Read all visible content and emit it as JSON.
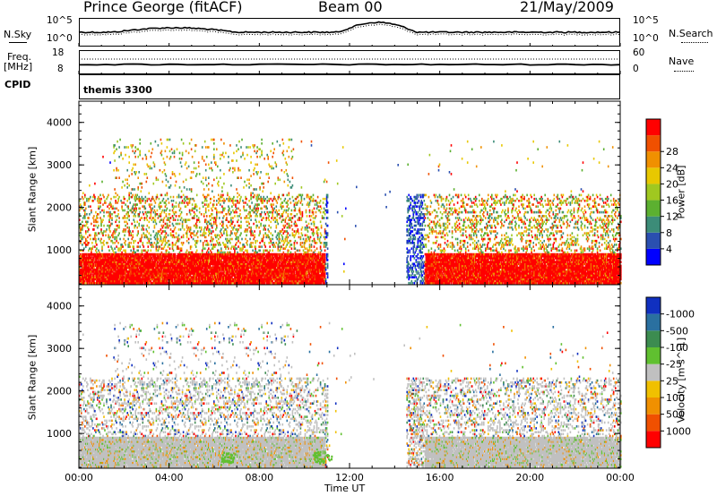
{
  "header": {
    "station": "Prince George (fitACF)",
    "beam": "Beam 00",
    "date": "21/May/2009"
  },
  "strip": {
    "nsky_label": "N.Sky",
    "nsearch_label": "N.Search",
    "freq_label_1": "Freq.",
    "freq_label_2": "[MHz]",
    "nave_label": "Nave",
    "cpid_label": "CPID",
    "cpid_value": "themis 3300",
    "noise_ticks_top": "10^5",
    "noise_ticks_bottom": "10^0",
    "freq_ticks": [
      "18",
      "8"
    ],
    "nave_ticks": [
      "60",
      "0"
    ]
  },
  "chart_data": [
    {
      "type": "heatmap",
      "panel": "power",
      "ylabel": "Slant Range [km]",
      "xlabel": "",
      "ylim": [
        180,
        4500
      ],
      "yticks": [
        "1000",
        "2000",
        "3000",
        "4000"
      ],
      "colorbar": {
        "label": "Power [dB]",
        "ticks": [
          "4",
          "8",
          "12",
          "16",
          "20",
          "24",
          "28"
        ],
        "colors": [
          "#0000ff",
          "#2a4fb0",
          "#3c8c78",
          "#5cb030",
          "#a0c820",
          "#e8c800",
          "#f09000",
          "#f05000",
          "#ff0000"
        ]
      },
      "regions": [
        {
          "t0": 0.0,
          "t1": 10.9,
          "r0": 200,
          "r1": 880,
          "level": "high"
        },
        {
          "t0": 15.3,
          "t1": 24.0,
          "r0": 200,
          "r1": 880,
          "level": "high"
        },
        {
          "t0": 0.0,
          "t1": 11.0,
          "r0": 880,
          "r1": 2200,
          "level": "mixed"
        },
        {
          "t0": 14.5,
          "t1": 24.0,
          "r0": 880,
          "r1": 2300,
          "level": "mixed"
        },
        {
          "t0": 10.5,
          "t1": 11.8,
          "r0": 300,
          "r1": 2500,
          "level": "low"
        },
        {
          "t0": 14.4,
          "t1": 15.5,
          "r0": 300,
          "r1": 2700,
          "level": "low"
        },
        {
          "t0": 2.0,
          "t1": 9.5,
          "r0": 1400,
          "r1": 3500,
          "level": "sparse"
        }
      ]
    },
    {
      "type": "heatmap",
      "panel": "velocity",
      "ylabel": "Slant Range [km]",
      "xlabel": "Time UT",
      "ylim": [
        180,
        4500
      ],
      "yticks": [
        "1000",
        "2000",
        "3000",
        "4000"
      ],
      "xticks": [
        "00:00",
        "04:00",
        "08:00",
        "12:00",
        "16:00",
        "20:00",
        "00:00"
      ],
      "colorbar": {
        "label": "Velocity [m s^-1]",
        "ticks": [
          "1000",
          "500",
          "100",
          "25",
          "-25",
          "-100",
          "-500",
          "-1000"
        ],
        "colors": [
          "#1030c0",
          "#2a70a0",
          "#3c8c50",
          "#60c030",
          "#c0c0c0",
          "#f0c000",
          "#f09000",
          "#f05000",
          "#ff0000"
        ]
      }
    }
  ]
}
